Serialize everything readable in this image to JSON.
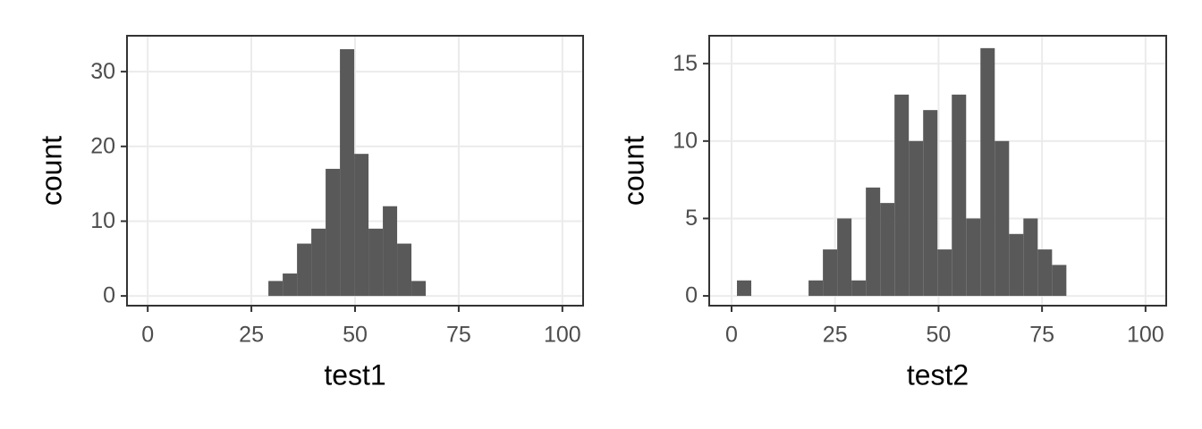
{
  "chart_data": [
    {
      "type": "histogram",
      "xlabel": "test1",
      "ylabel": "count",
      "color": "#595959",
      "grid": true,
      "bins": [
        29.1,
        32.55,
        36.0,
        39.45,
        42.9,
        46.35,
        49.8,
        53.25,
        56.7,
        60.15,
        63.6,
        67.05
      ],
      "values": [
        2,
        3,
        7,
        9,
        17,
        33,
        19,
        9,
        12,
        7,
        2
      ],
      "xlim": [
        -5,
        105
      ],
      "ylim": [
        -1.3,
        34.8
      ],
      "xticks": [
        0,
        25,
        50,
        75,
        100
      ],
      "yticks": [
        0,
        10,
        20,
        30
      ]
    },
    {
      "type": "histogram",
      "xlabel": "test2",
      "ylabel": "count",
      "color": "#595959",
      "grid": true,
      "bins": [
        1.3,
        4.76,
        8.22,
        11.68,
        15.14,
        18.6,
        22.06,
        25.52,
        28.98,
        32.44,
        35.9,
        39.36,
        42.82,
        46.28,
        49.74,
        53.2,
        56.66,
        60.12,
        63.58,
        67.04,
        70.5,
        73.96,
        77.42,
        80.88
      ],
      "values": [
        1,
        0,
        0,
        0,
        0,
        1,
        3,
        5,
        1,
        7,
        6,
        13,
        10,
        12,
        3,
        13,
        5,
        16,
        10,
        4,
        5,
        3,
        2
      ],
      "xlim": [
        -5.4,
        105
      ],
      "ylim": [
        -0.63,
        16.8
      ],
      "xticks": [
        0,
        25,
        50,
        75,
        100
      ],
      "yticks": [
        0,
        5,
        10,
        15
      ]
    }
  ]
}
